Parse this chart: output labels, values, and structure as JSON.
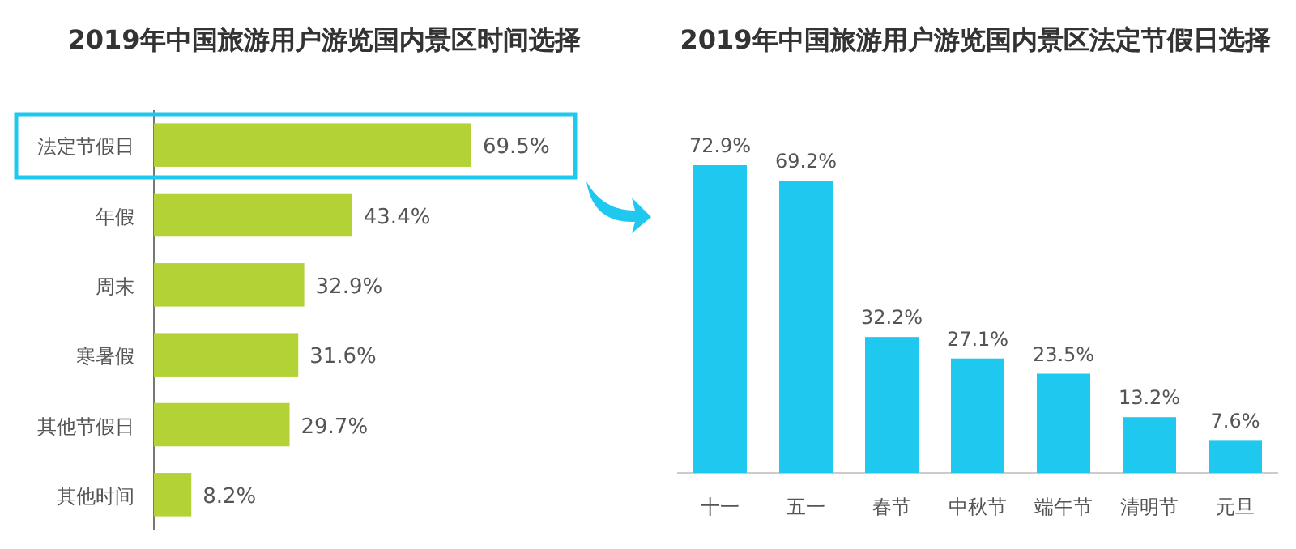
{
  "chart_data": [
    {
      "type": "bar",
      "orientation": "horizontal",
      "title": "2019年中国旅游用户游览国内景区时间选择",
      "categories": [
        "法定节假日",
        "年假",
        "周末",
        "寒暑假",
        "其他节假日",
        "其他时间"
      ],
      "values": [
        69.5,
        43.4,
        32.9,
        31.6,
        29.7,
        8.2
      ],
      "color": "#b2d235",
      "value_labels": [
        "69.5%",
        "43.4%",
        "32.9%",
        "31.6%",
        "29.7%",
        "8.2%"
      ]
    },
    {
      "type": "bar",
      "title": "2019年中国旅游用户游览国内景区法定节假日选择",
      "categories": [
        "十一",
        "五一",
        "春节",
        "中秋节",
        "端午节",
        "清明节",
        "元旦"
      ],
      "values": [
        72.9,
        69.2,
        32.2,
        27.1,
        23.5,
        13.2,
        7.6
      ],
      "color": "#1ec8ef",
      "value_labels": [
        "72.9%",
        "69.2%",
        "32.2%",
        "27.1%",
        "23.5%",
        "13.2%",
        "7.6%"
      ]
    }
  ]
}
